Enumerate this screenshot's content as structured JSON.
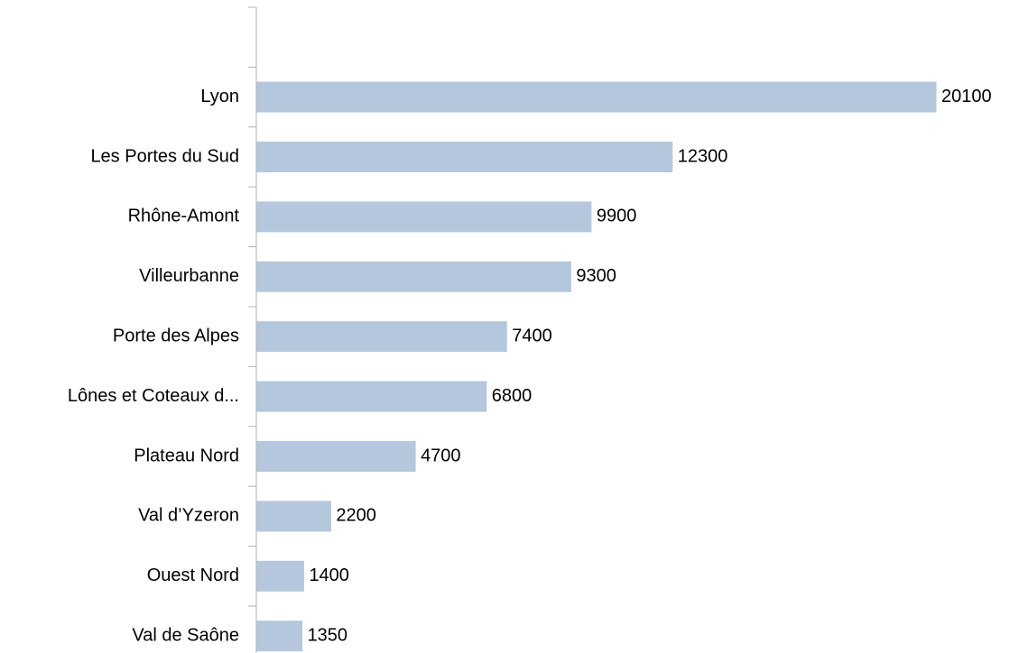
{
  "chart_data": {
    "type": "bar",
    "orientation": "horizontal",
    "color": "#b4c7dc",
    "categories": [
      null,
      "Lyon",
      "Les Portes du Sud",
      "Rhône-Amont",
      "Villeurbanne",
      "Porte des Alpes",
      "Lônes et Coteaux d...",
      "Plateau Nord",
      "Val d’Yzeron",
      "Ouest Nord",
      "Val de Saône"
    ],
    "values": [
      null,
      20100,
      12300,
      9900,
      9300,
      7400,
      6800,
      4700,
      2200,
      1400,
      1350
    ]
  }
}
